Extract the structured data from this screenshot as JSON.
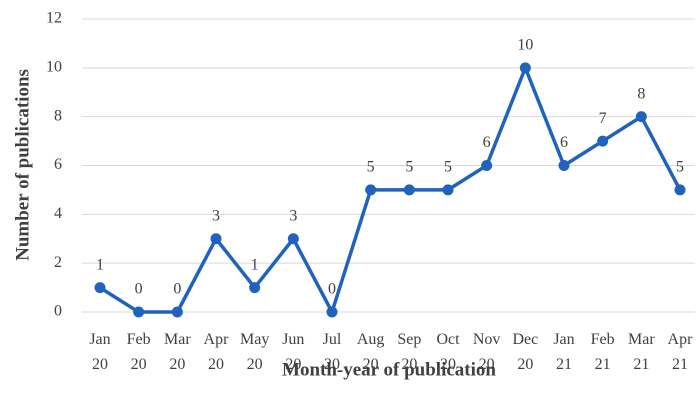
{
  "chart_data": {
    "type": "line",
    "x_label": "Month-year of publication",
    "y_label": "Number of publications",
    "categories": [
      "Jan 20",
      "Feb 20",
      "Mar 20",
      "Apr 20",
      "May 20",
      "Jun 20",
      "Jul 20",
      "Aug 20",
      "Sep 20",
      "Oct 20",
      "Nov 20",
      "Dec 20",
      "Jan 21",
      "Feb 21",
      "Mar 21",
      "Apr 21"
    ],
    "values": [
      1,
      0,
      0,
      3,
      1,
      3,
      0,
      5,
      5,
      5,
      6,
      10,
      6,
      7,
      8,
      5
    ],
    "color": "#1f63be",
    "ylim": [
      0,
      12
    ],
    "yticks": [
      0,
      2,
      4,
      6,
      8,
      10,
      12
    ],
    "grid": true
  }
}
